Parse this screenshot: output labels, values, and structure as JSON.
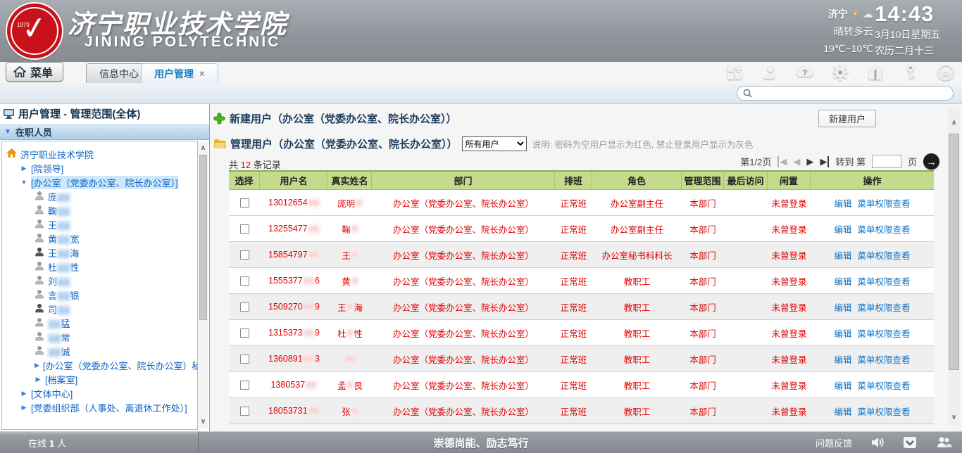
{
  "banner": {
    "school_cn": "济宁职业技术学院",
    "school_en": "JINING POLYTECHNIC",
    "seal_year": "1979",
    "weather": {
      "city": "济宁",
      "condition": "晴转多云",
      "temp": "19℃~10℃",
      "icons": [
        "sun-icon",
        "cloud-icon"
      ]
    },
    "clock": {
      "time": "14:43",
      "date": "3月10日星期五",
      "lunar": "农历二月十三"
    }
  },
  "tabbar": {
    "menu_label": "菜单",
    "tabs": [
      {
        "label": "信息中心",
        "active": false
      },
      {
        "label": "用户管理",
        "active": true,
        "close": "×"
      }
    ],
    "toolbar_icons": [
      "apps-icon",
      "user-icon",
      "help-cloud-icon",
      "settings-gear-icon",
      "gift-icon",
      "key-icon",
      "collapse-icon"
    ]
  },
  "search": {
    "value": ""
  },
  "sidebar": {
    "title": "用户管理 - 管理范围(全体)",
    "section": "在职人员",
    "tree": [
      {
        "type": "root",
        "label": "济宁职业技术学院",
        "level": 0
      },
      {
        "type": "dept",
        "label": "[院领导]",
        "level": 1,
        "state": "collapsed"
      },
      {
        "type": "dept",
        "label": "[办公室（党委办公室、院长办公室）]",
        "level": 1,
        "state": "expanded",
        "selected": true
      },
      {
        "type": "user",
        "pre": "庞",
        "mask": "●●",
        "sfx": "",
        "dark": false,
        "level": 2
      },
      {
        "type": "user",
        "pre": "鞠",
        "mask": "●●",
        "sfx": "",
        "dark": false,
        "level": 2
      },
      {
        "type": "user",
        "pre": "王",
        "mask": "●●",
        "sfx": "",
        "dark": false,
        "level": 2
      },
      {
        "type": "user",
        "pre": "黄",
        "mask": "●●",
        "sfx": "宽",
        "dark": false,
        "level": 2
      },
      {
        "type": "user",
        "pre": "王",
        "mask": "●●",
        "sfx": "海",
        "dark": true,
        "level": 2
      },
      {
        "type": "user",
        "pre": "杜",
        "mask": "●●",
        "sfx": "性",
        "dark": false,
        "level": 2
      },
      {
        "type": "user",
        "pre": "刘",
        "mask": "●●",
        "sfx": "",
        "dark": false,
        "level": 2
      },
      {
        "type": "user",
        "pre": "言",
        "mask": "●●",
        "sfx": "银",
        "dark": false,
        "level": 2
      },
      {
        "type": "user",
        "pre": "司",
        "mask": "●●",
        "sfx": "",
        "dark": true,
        "level": 2
      },
      {
        "type": "user",
        "pre": "",
        "mask": "●●",
        "sfx": "猛",
        "dark": false,
        "level": 2
      },
      {
        "type": "user",
        "pre": "",
        "mask": "●●",
        "sfx": "常",
        "dark": false,
        "level": 2
      },
      {
        "type": "user",
        "pre": "",
        "mask": "●●",
        "sfx": "诚",
        "dark": false,
        "level": 2
      },
      {
        "type": "dept",
        "label": "[办公室（党委办公室、院长办公室）秘书科]",
        "level": 2,
        "state": "collapsed"
      },
      {
        "type": "dept",
        "label": "[档案室]",
        "level": 2,
        "state": "collapsed"
      },
      {
        "type": "dept",
        "label": "[文体中心]",
        "level": 1,
        "state": "collapsed"
      },
      {
        "type": "dept",
        "label": "[党委组织部（人事处、离退休工作处）]",
        "level": 1,
        "state": "collapsed"
      }
    ],
    "online_label": "在线",
    "online_count": "1",
    "online_unit": "人"
  },
  "main": {
    "new_user_title": "新建用户（办公室（党委办公室、院长办公室））",
    "new_user_button": "新建用户",
    "manage_title": "管理用户（办公室（党委办公室、院长办公室））",
    "filter_value": "所有用户",
    "note": "说明: 密码为空用户显示为红色, 禁止登录用户显示为灰色",
    "total_prefix": "共",
    "total_count": "12",
    "total_suffix": "条记录",
    "pagination": {
      "page_label": "第1/2页",
      "goto_prefix": "转到 第",
      "goto_suffix": "页",
      "goto_value": ""
    },
    "table": {
      "headers": [
        "选择",
        "用户名",
        "真实姓名",
        "部门",
        "排班",
        "角色",
        "管理范围",
        "最后访问",
        "闲置",
        "操作"
      ],
      "edit_label": "编辑",
      "perm_label": "菜单权限查看",
      "rows": [
        {
          "user_pre": "13012654",
          "user_mask": "●●",
          "user_sfx": "",
          "name_pre": "庞明",
          "name_mask": "●",
          "name_sfx": "",
          "dept": "办公室（党委办公室、院长办公室）",
          "shift": "正常班",
          "role": "办公室副主任",
          "scope": "本部门",
          "last_visit": "",
          "idle": "未曾登录"
        },
        {
          "user_pre": "13255477",
          "user_mask": "●●",
          "user_sfx": "",
          "name_pre": "鞠",
          "name_mask": "●",
          "name_sfx": "",
          "dept": "办公室（党委办公室、院长办公室）",
          "shift": "正常班",
          "role": "办公室副主任",
          "scope": "本部门",
          "last_visit": "",
          "idle": "未曾登录"
        },
        {
          "user_pre": "15854797",
          "user_mask": "●●",
          "user_sfx": "",
          "name_pre": "王",
          "name_mask": "●",
          "name_sfx": "",
          "dept": "办公室（党委办公室、院长办公室）",
          "shift": "正常班",
          "role": "办公室秘书科科长",
          "scope": "本部门",
          "last_visit": "",
          "idle": "未曾登录"
        },
        {
          "user_pre": "1555377",
          "user_mask": "●●",
          "user_sfx": "6",
          "name_pre": "黄",
          "name_mask": "●",
          "name_sfx": "",
          "dept": "办公室（党委办公室、院长办公室）",
          "shift": "正常班",
          "role": "教职工",
          "scope": "本部门",
          "last_visit": "",
          "idle": "未曾登录"
        },
        {
          "user_pre": "1509270",
          "user_mask": "●●",
          "user_sfx": "9",
          "name_pre": "王",
          "name_mask": "●",
          "name_sfx": "海",
          "dept": "办公室（党委办公室、院长办公室）",
          "shift": "正常班",
          "role": "教职工",
          "scope": "本部门",
          "last_visit": "",
          "idle": "未曾登录"
        },
        {
          "user_pre": "1315373",
          "user_mask": "●●",
          "user_sfx": "9",
          "name_pre": "杜",
          "name_mask": "●",
          "name_sfx": "性",
          "dept": "办公室（党委办公室、院长办公室）",
          "shift": "正常班",
          "role": "教职工",
          "scope": "本部门",
          "last_visit": "",
          "idle": "未曾登录"
        },
        {
          "user_pre": "1360891",
          "user_mask": "●●",
          "user_sfx": "3",
          "name_pre": "",
          "name_mask": "●●",
          "name_sfx": "",
          "dept": "办公室（党委办公室、院长办公室）",
          "shift": "正常班",
          "role": "教职工",
          "scope": "本部门",
          "last_visit": "",
          "idle": "未曾登录"
        },
        {
          "user_pre": "1380537",
          "user_mask": "●●",
          "user_sfx": "",
          "name_pre": "孟",
          "name_mask": "●",
          "name_sfx": "艮",
          "dept": "办公室（党委办公室、院长办公室）",
          "shift": "正常班",
          "role": "教职工",
          "scope": "本部门",
          "last_visit": "",
          "idle": "未曾登录"
        },
        {
          "user_pre": "18053731",
          "user_mask": "●●",
          "user_sfx": "",
          "name_pre": "张",
          "name_mask": "●",
          "name_sfx": "",
          "dept": "办公室（党委办公室、院长办公室）",
          "shift": "正常班",
          "role": "教职工",
          "scope": "本部门",
          "last_visit": "",
          "idle": "未曾登录"
        }
      ]
    }
  },
  "footer": {
    "motto": "崇德尚能、励志笃行",
    "feedback": "问题反馈",
    "icons": [
      "speaker-icon",
      "inbox-icon",
      "people-icon"
    ]
  },
  "colors": {
    "accent_red": "#e00000",
    "link_blue": "#0a74c9",
    "header_green": "#c4db8e",
    "tree_blue": "#0a62c4"
  }
}
